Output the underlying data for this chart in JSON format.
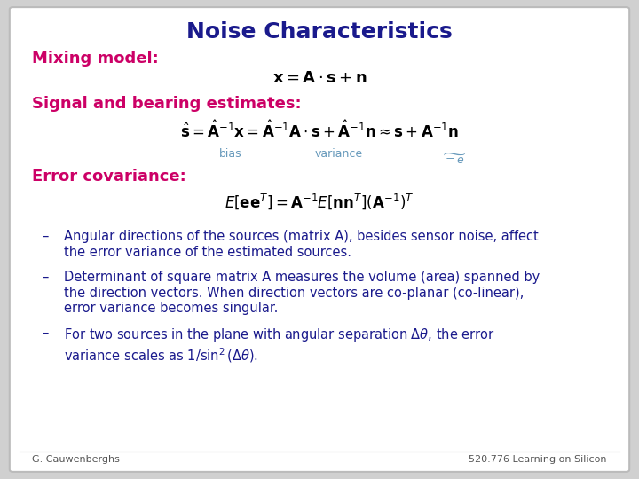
{
  "title": "Noise Characteristics",
  "title_color": "#1a1a8c",
  "title_fontsize": 18,
  "bg_color": "#d0d0d0",
  "slide_bg": "#ffffff",
  "border_color": "#bbbbbb",
  "section_color": "#cc0066",
  "section_fontsize": 13,
  "body_color": "#1a1a8c",
  "body_fontsize": 10.5,
  "footer_color": "#555555",
  "footer_fontsize": 8,
  "label_color": "#6699bb",
  "mixing_label": "Mixing model:",
  "mixing_eq": "$\\mathbf{x} = \\mathbf{A} \\cdot \\mathbf{s} + \\mathbf{n}$",
  "signal_label": "Signal and bearing estimates:",
  "signal_eq": "$\\hat{\\mathbf{s}} = \\hat{\\mathbf{A}}^{-1}\\mathbf{x} = \\hat{\\mathbf{A}}^{-1}\\mathbf{A} \\cdot \\mathbf{s} + \\hat{\\mathbf{A}}^{-1}\\mathbf{n} \\approx \\mathbf{s} + \\mathbf{A}^{-1}\\mathbf{n}$",
  "bias_label": "bias",
  "variance_label": "variance",
  "equals_e_label": "$= e$",
  "error_label": "Error covariance:",
  "error_eq": "$E[\\mathbf{e}\\mathbf{e}^T] = \\mathbf{A}^{-1} E[\\mathbf{n}\\mathbf{n}^T](\\mathbf{A}^{-1})^T$",
  "bullet1_dash": "–",
  "bullet1": "Angular directions of the sources (matrix A), besides sensor noise, affect\nthe error variance of the estimated sources.",
  "bullet2_dash": "–",
  "bullet2": "Determinant of square matrix A measures the volume (area) spanned by\nthe direction vectors. When direction vectors are co-planar (co-linear),\nerror variance becomes singular.",
  "bullet3_dash": "–",
  "bullet3": "For two sources in the plane with angular separation $\\Delta\\theta$, the error\nvariance scales as $1/\\sin^2(\\Delta\\theta)$.",
  "footer_left": "G. Cauwenberghs",
  "footer_right": "520.776 Learning on Silicon"
}
